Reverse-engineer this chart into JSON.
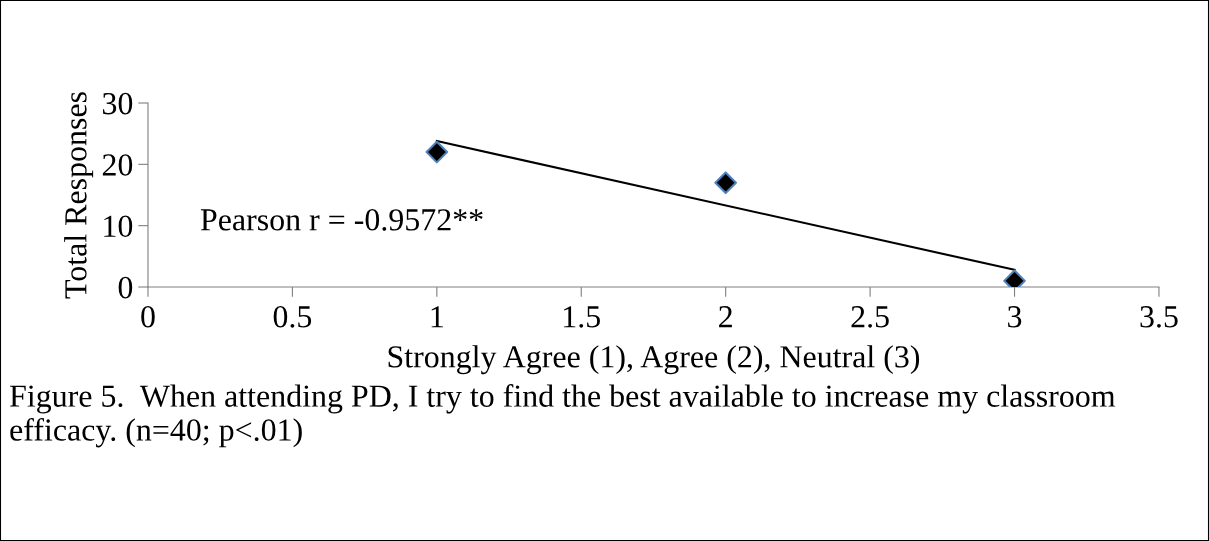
{
  "chart_data": {
    "type": "scatter",
    "xlabel": "Strongly Agree (1), Agree (2), Neutral (3)",
    "ylabel": "Total Responses",
    "series": [
      {
        "x": [
          1,
          2,
          3
        ],
        "values": [
          22,
          17,
          1
        ],
        "color": "#000000",
        "marker": "diamond"
      },
      {
        "type": "line",
        "x": [
          1,
          3
        ],
        "values": [
          23.8,
          2.8
        ],
        "color": "#000000",
        "marker": "none",
        "line_style": "solid"
      }
    ],
    "xlim": [
      0,
      3.5
    ],
    "xticks": [
      0,
      0.5,
      1,
      1.5,
      2,
      2.5,
      3,
      3.5
    ],
    "ylim": [
      0,
      30
    ],
    "yticks": [
      0,
      10,
      20,
      30
    ],
    "grid": false,
    "legend": false,
    "annotations": [
      "Pearson r = -0.9572**",
      "Figure 5.  When attending PD, I try to find the best available to increase my classroom efficacy. (n=40; p<.01)"
    ]
  }
}
